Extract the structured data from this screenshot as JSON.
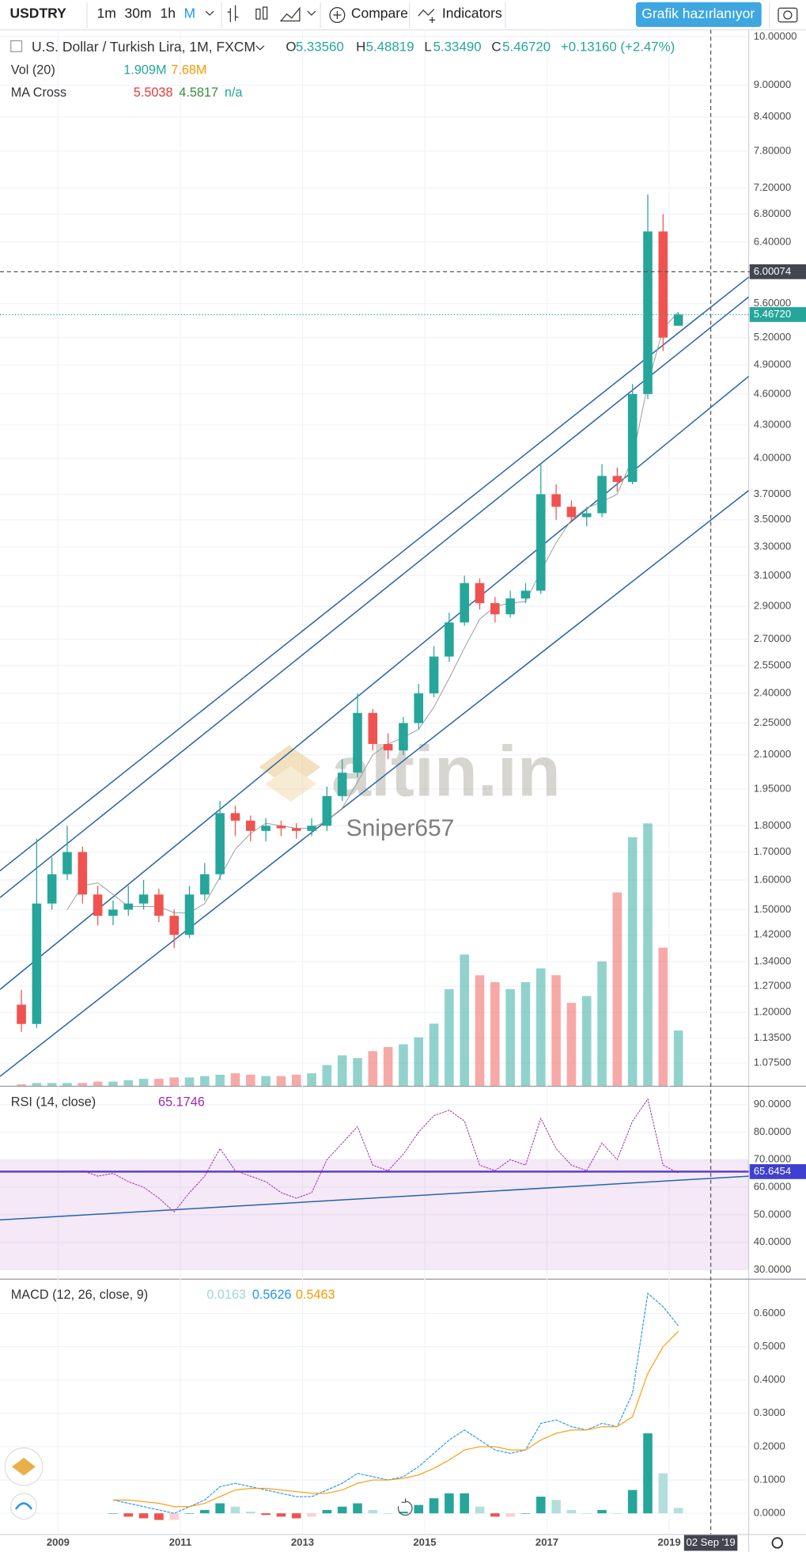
{
  "chart_data": {
    "type": "candlestick",
    "symbol": "USDTRY",
    "title": "U.S. Dollar / Turkish Lira, 1M, FXCM",
    "toolbar": {
      "intervals": [
        "1m",
        "30m",
        "1h",
        "M"
      ],
      "compare": "Compare",
      "indicators": "Indicators",
      "button": "Grafik hazırlanıyor"
    },
    "legend": {
      "o_label": "O",
      "o": "5.33560",
      "h_label": "H",
      "h": "5.48819",
      "l_label": "L",
      "l": "5.33490",
      "c_label": "C",
      "c": "5.46720",
      "change": "+0.13160 (+2.47%)"
    },
    "up_color": "#26a69a",
    "down_color": "#ef5350",
    "log_scale": true,
    "grid": true,
    "x": [
      2008.4,
      2008.65,
      2008.9,
      2009.15,
      2009.4,
      2009.65,
      2009.9,
      2010.15,
      2010.4,
      2010.65,
      2010.9,
      2011.15,
      2011.4,
      2011.65,
      2011.9,
      2012.15,
      2012.4,
      2012.65,
      2012.9,
      2013.15,
      2013.4,
      2013.65,
      2013.9,
      2014.15,
      2014.4,
      2014.65,
      2014.9,
      2015.15,
      2015.4,
      2015.65,
      2015.9,
      2016.15,
      2016.4,
      2016.65,
      2016.9,
      2017.15,
      2017.4,
      2017.65,
      2017.9,
      2018.15,
      2018.4,
      2018.65,
      2018.9,
      2019.15
    ],
    "open": [
      1.22,
      1.17,
      1.52,
      1.62,
      1.7,
      1.55,
      1.48,
      1.5,
      1.52,
      1.55,
      1.48,
      1.42,
      1.55,
      1.62,
      1.85,
      1.82,
      1.78,
      1.8,
      1.79,
      1.78,
      1.8,
      1.92,
      2.02,
      2.3,
      2.15,
      2.12,
      2.25,
      2.4,
      2.6,
      2.8,
      3.05,
      2.92,
      2.85,
      2.95,
      3.0,
      3.7,
      3.6,
      3.52,
      3.55,
      3.85,
      3.8,
      4.6,
      6.55,
      5.3356
    ],
    "high": [
      1.26,
      1.75,
      1.68,
      1.8,
      1.72,
      1.58,
      1.53,
      1.58,
      1.6,
      1.57,
      1.5,
      1.58,
      1.66,
      1.9,
      1.88,
      1.84,
      1.83,
      1.82,
      1.81,
      1.83,
      1.96,
      2.08,
      2.4,
      2.32,
      2.2,
      2.28,
      2.45,
      2.66,
      2.86,
      3.1,
      3.08,
      2.96,
      3.0,
      3.05,
      3.95,
      3.78,
      3.65,
      3.6,
      3.95,
      3.92,
      4.7,
      7.1,
      6.8,
      5.48819
    ],
    "low": [
      1.15,
      1.16,
      1.5,
      1.6,
      1.52,
      1.45,
      1.45,
      1.48,
      1.5,
      1.46,
      1.38,
      1.41,
      1.53,
      1.6,
      1.76,
      1.74,
      1.74,
      1.76,
      1.75,
      1.76,
      1.78,
      1.9,
      2.0,
      2.12,
      2.08,
      2.1,
      2.22,
      2.38,
      2.57,
      2.78,
      2.88,
      2.8,
      2.83,
      2.92,
      2.98,
      3.5,
      3.48,
      3.45,
      3.52,
      3.72,
      3.78,
      4.55,
      5.05,
      5.3349
    ],
    "close": [
      1.17,
      1.52,
      1.62,
      1.7,
      1.55,
      1.48,
      1.5,
      1.52,
      1.55,
      1.48,
      1.42,
      1.55,
      1.62,
      1.85,
      1.82,
      1.78,
      1.8,
      1.79,
      1.78,
      1.8,
      1.92,
      2.02,
      2.3,
      2.15,
      2.12,
      2.25,
      2.4,
      2.6,
      2.8,
      3.05,
      2.92,
      2.85,
      2.95,
      3.0,
      3.7,
      3.6,
      3.52,
      3.55,
      3.85,
      3.8,
      4.6,
      6.55,
      5.2,
      5.4672
    ],
    "xlim": [
      2008.05,
      2020.3
    ],
    "xticks": [
      2009,
      2011,
      2013,
      2015,
      2017,
      2019
    ],
    "ylim": [
      1.023,
      10.15
    ],
    "yticks": [
      {
        "value": 10,
        "label": "10.00000"
      },
      {
        "value": 9,
        "label": "9.00000"
      },
      {
        "value": 8.4,
        "label": "8.40000"
      },
      {
        "value": 7.8,
        "label": "7.80000"
      },
      {
        "value": 7.2,
        "label": "7.20000"
      },
      {
        "value": 6.8,
        "label": "6.80000"
      },
      {
        "value": 6.4,
        "label": "6.40000"
      },
      {
        "value": 5.6,
        "label": "5.60000"
      },
      {
        "value": 5.2,
        "label": "5.20000"
      },
      {
        "value": 4.9,
        "label": "4.90000"
      },
      {
        "value": 4.6,
        "label": "4.60000"
      },
      {
        "value": 4.3,
        "label": "4.30000"
      },
      {
        "value": 4,
        "label": "4.00000"
      },
      {
        "value": 3.7,
        "label": "3.70000"
      },
      {
        "value": 3.5,
        "label": "3.50000"
      },
      {
        "value": 3.3,
        "label": "3.30000"
      },
      {
        "value": 3.1,
        "label": "3.10000"
      },
      {
        "value": 2.9,
        "label": "2.90000"
      },
      {
        "value": 2.7,
        "label": "2.70000"
      },
      {
        "value": 2.55,
        "label": "2.55000"
      },
      {
        "value": 2.4,
        "label": "2.40000"
      },
      {
        "value": 2.25,
        "label": "2.25000"
      },
      {
        "value": 2.1,
        "label": "2.10000"
      },
      {
        "value": 1.95,
        "label": "1.95000"
      },
      {
        "value": 1.8,
        "label": "1.80000"
      },
      {
        "value": 1.7,
        "label": "1.70000"
      },
      {
        "value": 1.6,
        "label": "1.60000"
      },
      {
        "value": 1.5,
        "label": "1.50000"
      },
      {
        "value": 1.42,
        "label": "1.42000"
      },
      {
        "value": 1.34,
        "label": "1.34000"
      },
      {
        "value": 1.27,
        "label": "1.27000"
      },
      {
        "value": 1.2,
        "label": "1.20000"
      },
      {
        "value": 1.135,
        "label": "1.13500"
      },
      {
        "value": 1.075,
        "label": "1.07500"
      }
    ],
    "volume": {
      "name": "Vol (20)",
      "value_text": "1.909M",
      "ma_text": "7.68M",
      "ylim": [
        0,
        22
      ],
      "values": [
        0.1,
        0.2,
        0.2,
        0.2,
        0.2,
        0.3,
        0.3,
        0.4,
        0.5,
        0.5,
        0.6,
        0.6,
        0.7,
        0.8,
        0.9,
        0.8,
        0.7,
        0.7,
        0.8,
        0.9,
        1.5,
        2.2,
        2.0,
        2.5,
        2.8,
        3.0,
        3.5,
        4.5,
        7.0,
        9.5,
        8.0,
        7.5,
        7.0,
        7.5,
        8.5,
        8.0,
        6.0,
        6.5,
        9.0,
        14.0,
        18.0,
        19.0,
        10.0,
        4.0
      ]
    },
    "ma": {
      "name": "MA Cross",
      "texts": [
        "5.5038",
        "4.5817",
        "n/a"
      ],
      "color": "#9e9e9e",
      "values": [
        null,
        null,
        null,
        1.5,
        1.58,
        1.59,
        1.55,
        1.51,
        1.51,
        1.51,
        1.49,
        1.49,
        1.52,
        1.61,
        1.71,
        1.77,
        1.81,
        1.8,
        1.79,
        1.79,
        1.82,
        1.87,
        1.98,
        2.1,
        2.15,
        2.18,
        2.22,
        2.33,
        2.48,
        2.65,
        2.82,
        2.9,
        2.92,
        2.93,
        3.13,
        3.33,
        3.5,
        3.59,
        3.64,
        3.7,
        4.0,
        4.7,
        5.3,
        5.5
      ]
    },
    "trend_lines": [
      {
        "x": [
          2008.05,
          2020.3
        ],
        "y": [
          1.632,
          5.93
        ]
      },
      {
        "x": [
          2008.05,
          2020.3
        ],
        "y": [
          1.54,
          5.68
        ]
      },
      {
        "x": [
          2008.05,
          2020.3
        ],
        "y": [
          1.261,
          4.78
        ]
      },
      {
        "x": [
          2008.05,
          2020.3
        ],
        "y": [
          1.044,
          3.73
        ]
      }
    ],
    "trend_color": "#2962a8",
    "hline": {
      "value": 6.00074
    },
    "last_price": {
      "value": 5.4672,
      "label": "5.46720"
    },
    "crosshair": {
      "x": 2019.68,
      "label": "02 Sep '19"
    },
    "rsi": {
      "name": "RSI (14, close)",
      "value_text": "65.1746",
      "color": "#9c27b0",
      "ylim": [
        26.75,
        96.5
      ],
      "band": [
        30,
        70
      ],
      "yticks": [
        {
          "value": 90,
          "label": "90.0000"
        },
        {
          "value": 80,
          "label": "80.0000"
        },
        {
          "value": 70,
          "label": "70.0000"
        },
        {
          "value": 60,
          "label": "60.0000"
        },
        {
          "value": 50,
          "label": "50.0000"
        },
        {
          "value": 40,
          "label": "40.0000"
        },
        {
          "value": 30,
          "label": "30.0000"
        }
      ],
      "values": [
        null,
        null,
        null,
        null,
        66,
        64,
        65,
        62,
        60,
        56,
        51,
        58,
        64,
        74,
        66,
        64,
        62,
        58,
        56,
        58,
        70,
        76,
        82,
        68,
        66,
        72,
        80,
        86,
        88,
        84,
        68,
        66,
        70,
        68,
        85,
        74,
        68,
        66,
        76,
        70,
        84,
        92,
        68,
        65.1746
      ],
      "level": {
        "value": 65.6454,
        "label": "65.6454"
      },
      "trend": {
        "x": [
          2008.05,
          2020.3
        ],
        "y": [
          48.1,
          64.0
        ]
      }
    },
    "macd": {
      "name": "MACD (12, 26, close, 9)",
      "texts": [
        "0.0163",
        "0.5626",
        "0.5463"
      ],
      "macd_color": "#2196f3",
      "signal_color": "#ff9800",
      "ylim": [
        -0.062,
        0.701
      ],
      "yticks": [
        {
          "value": 0.6,
          "label": "0.6000"
        },
        {
          "value": 0.5,
          "label": "0.5000"
        },
        {
          "value": 0.4,
          "label": "0.4000"
        },
        {
          "value": 0.3,
          "label": "0.3000"
        },
        {
          "value": 0.2,
          "label": "0.2000"
        },
        {
          "value": 0.1,
          "label": "0.1000"
        },
        {
          "value": 0,
          "label": "0.0000"
        }
      ],
      "macd": [
        null,
        null,
        null,
        null,
        null,
        null,
        0.04,
        0.03,
        0.02,
        0.01,
        0.0,
        0.02,
        0.04,
        0.08,
        0.09,
        0.08,
        0.07,
        0.06,
        0.05,
        0.05,
        0.07,
        0.09,
        0.12,
        0.11,
        0.1,
        0.11,
        0.14,
        0.18,
        0.22,
        0.25,
        0.22,
        0.19,
        0.18,
        0.19,
        0.27,
        0.28,
        0.26,
        0.25,
        0.27,
        0.26,
        0.36,
        0.66,
        0.62,
        0.5626
      ],
      "signal": [
        null,
        null,
        null,
        null,
        null,
        null,
        0.04,
        0.04,
        0.035,
        0.03,
        0.02,
        0.02,
        0.03,
        0.05,
        0.07,
        0.075,
        0.075,
        0.07,
        0.065,
        0.06,
        0.06,
        0.07,
        0.09,
        0.1,
        0.1,
        0.105,
        0.115,
        0.135,
        0.16,
        0.19,
        0.2,
        0.2,
        0.19,
        0.19,
        0.22,
        0.24,
        0.25,
        0.25,
        0.26,
        0.26,
        0.29,
        0.42,
        0.5,
        0.5463
      ],
      "histogram": [
        null,
        null,
        null,
        null,
        null,
        null,
        0,
        -0.01,
        -0.015,
        -0.02,
        -0.02,
        0,
        0.01,
        0.03,
        0.02,
        0.005,
        -0.005,
        -0.01,
        -0.015,
        -0.01,
        0.01,
        0.02,
        0.03,
        0.01,
        0,
        0.005,
        0.025,
        0.045,
        0.06,
        0.06,
        0.02,
        -0.01,
        -0.01,
        0,
        0.05,
        0.04,
        0.01,
        0,
        0.01,
        0,
        0.07,
        0.24,
        0.12,
        0.0163
      ]
    },
    "watermark": "altin.in",
    "author": "Sniper657"
  }
}
